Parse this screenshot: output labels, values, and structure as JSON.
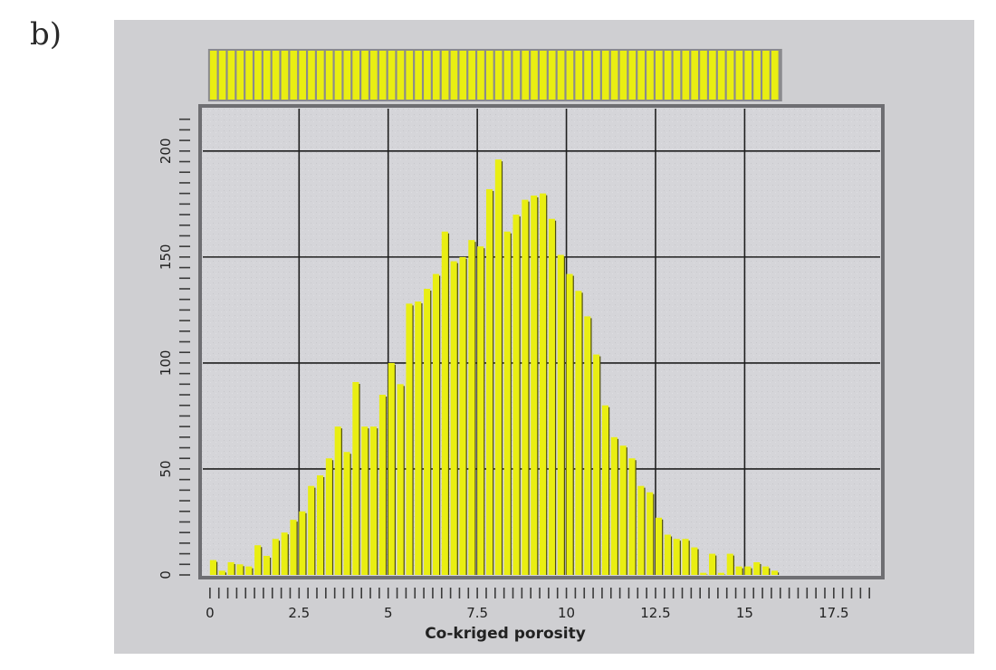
{
  "panel_label": "b)",
  "colors": {
    "bar_fill": "#e9ee12",
    "bar_shadow": "#4d4d10",
    "figure_bg": "#cfcfd2",
    "plot_bg": "#d6d6da",
    "grid": "#1f1f1f"
  },
  "chart_data": {
    "type": "bar",
    "xlabel": "Co-kriged porosity",
    "ylabel": "",
    "bin_width": 0.25,
    "x_start": 0,
    "xlim": [
      -0.2,
      18.8
    ],
    "ylim": [
      0,
      220
    ],
    "x_ticks": [
      0,
      2.5,
      5,
      7.5,
      10,
      12.5,
      15,
      17.5
    ],
    "x_tick_labels": [
      "0",
      "2.5",
      "5",
      "7.5",
      "10",
      "12.5",
      "15",
      "17.5"
    ],
    "y_ticks": [
      0,
      50,
      100,
      150,
      200
    ],
    "y_tick_labels": [
      "0",
      "50",
      "100",
      "150",
      "200"
    ],
    "x_grid": [
      2.5,
      5,
      7.5,
      10,
      12.5,
      15
    ],
    "y_grid": [
      50,
      100,
      150,
      200
    ],
    "grid": true,
    "values": [
      7,
      2,
      6,
      5,
      4,
      14,
      9,
      17,
      20,
      26,
      30,
      42,
      47,
      55,
      70,
      58,
      91,
      70,
      70,
      85,
      100,
      90,
      128,
      129,
      135,
      142,
      162,
      148,
      150,
      158,
      155,
      182,
      196,
      162,
      170,
      177,
      179,
      180,
      168,
      151,
      142,
      134,
      122,
      104,
      80,
      65,
      61,
      55,
      42,
      39,
      27,
      19,
      17,
      17,
      13,
      1,
      10,
      1,
      10,
      4,
      4,
      6,
      4,
      2
    ]
  }
}
